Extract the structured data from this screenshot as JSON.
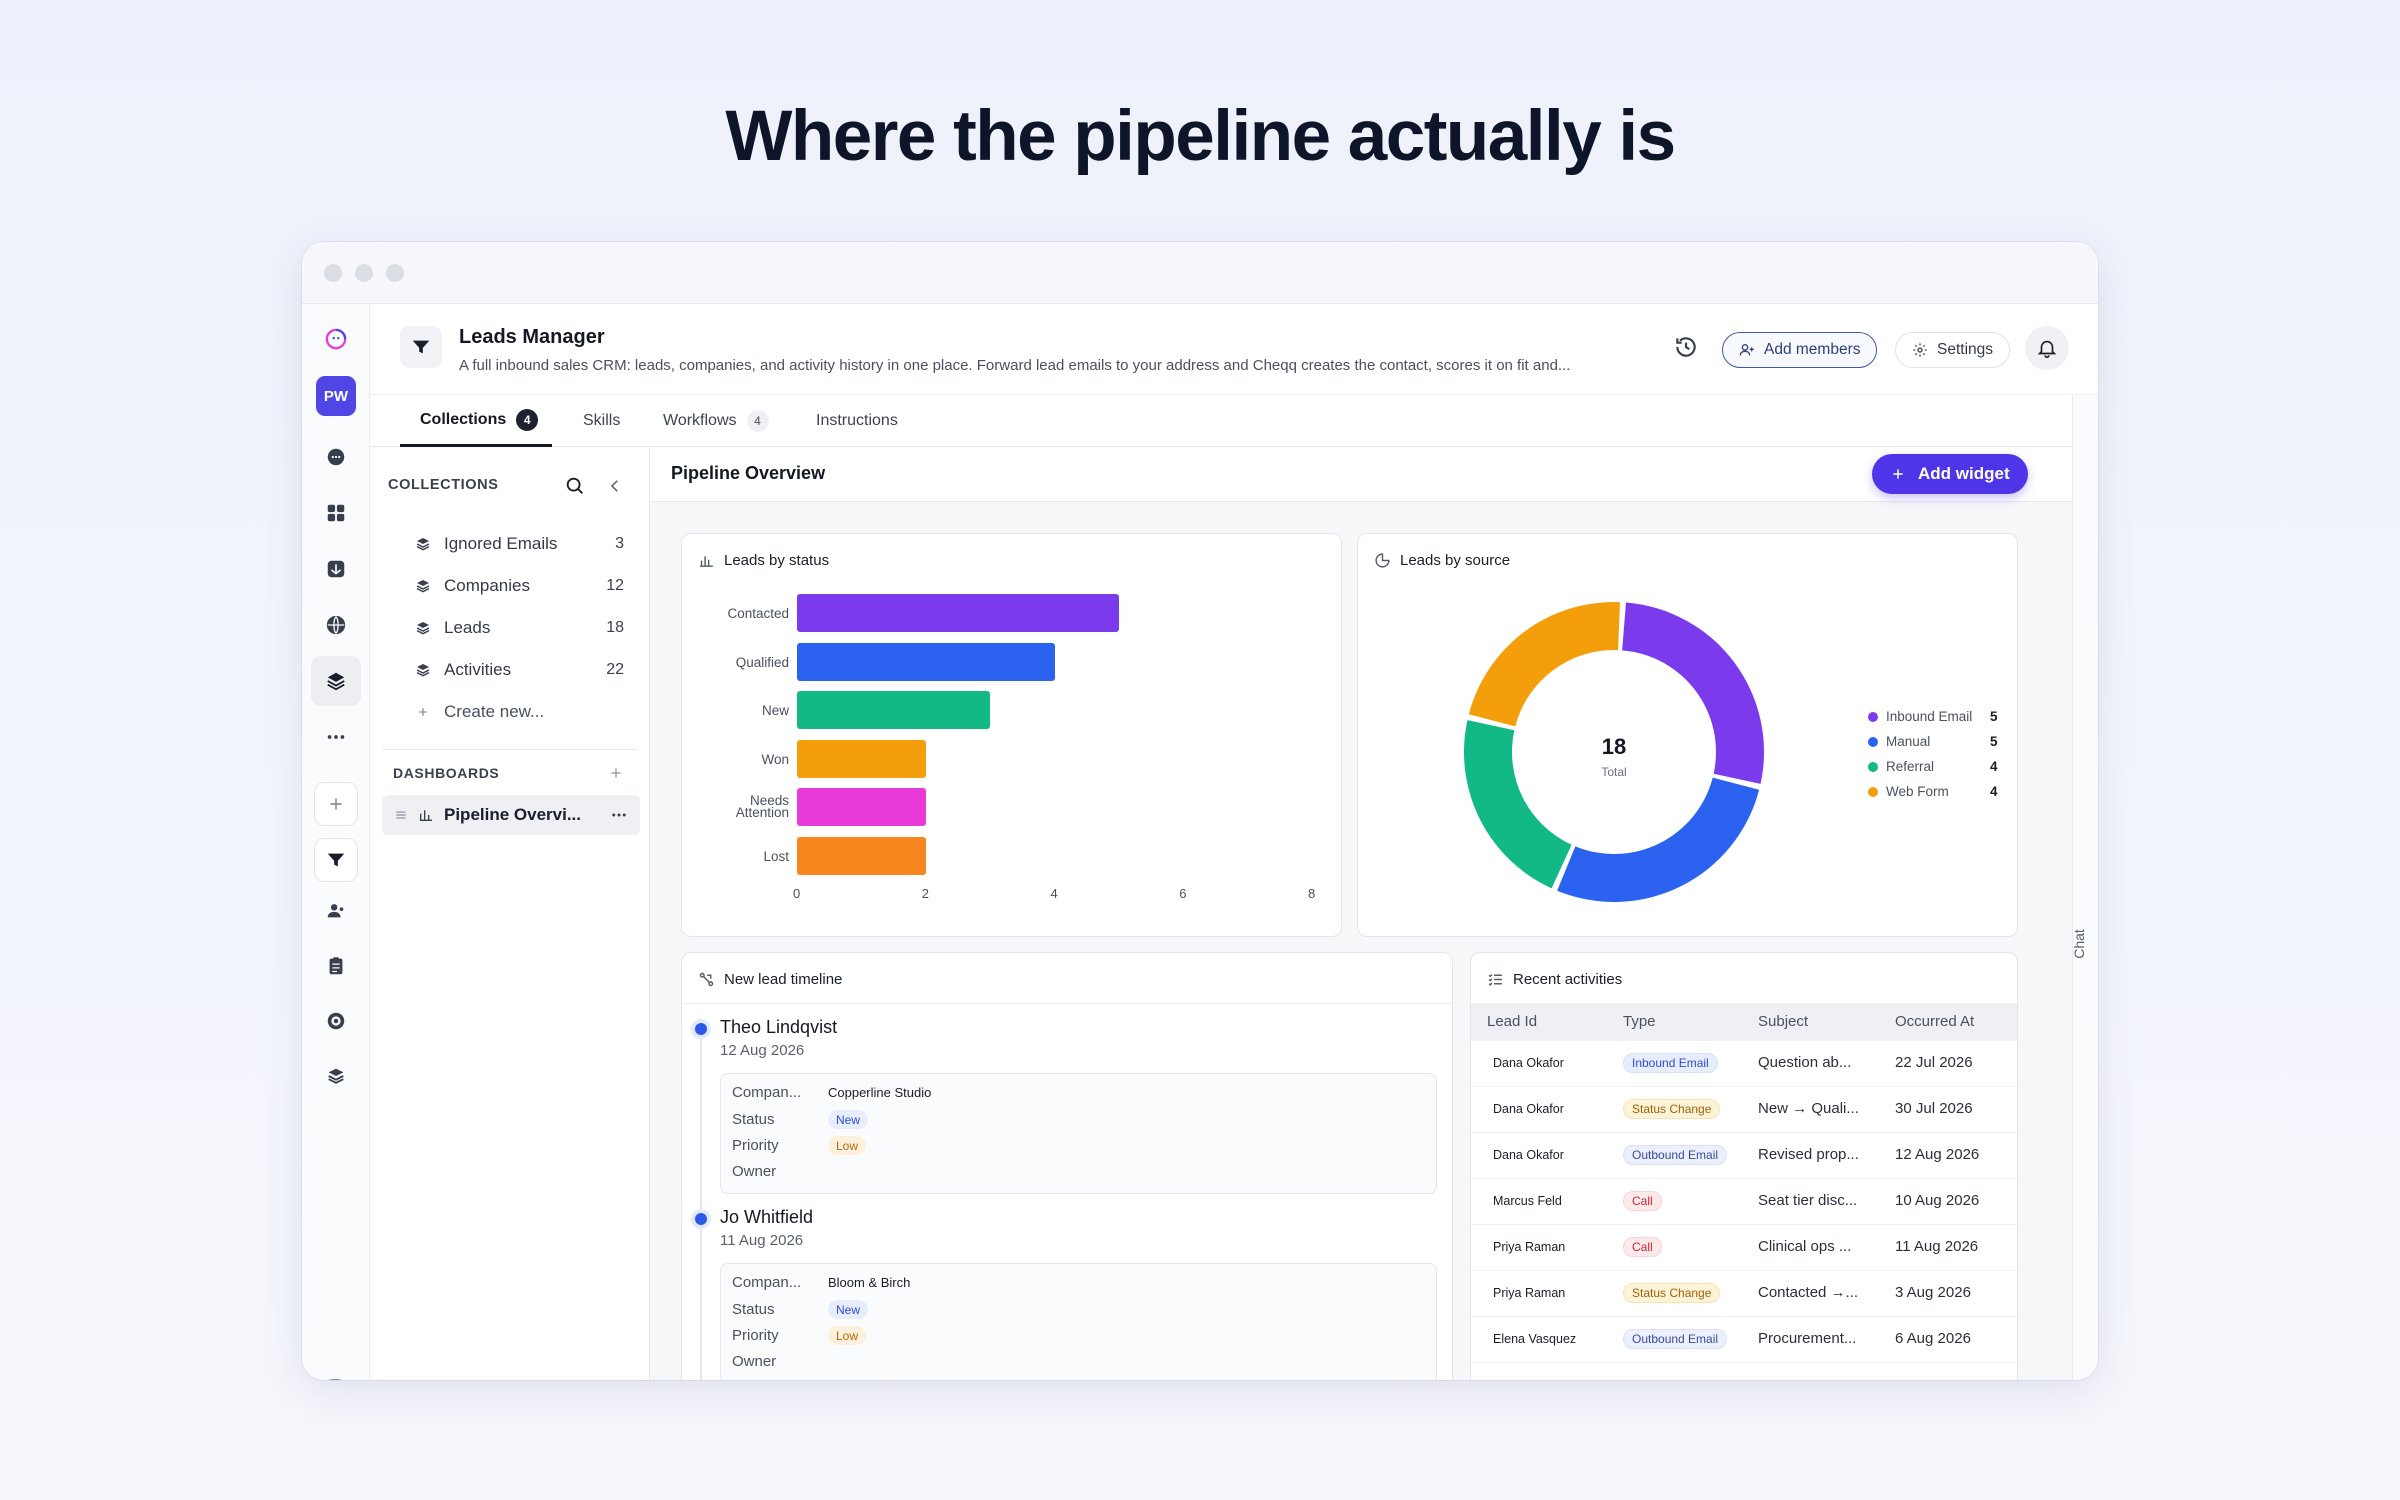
{
  "headline": "Where the pipeline actually is",
  "app": {
    "title": "Leads Manager",
    "description": "A full inbound sales CRM: leads, companies, and activity history in one place. Forward lead emails to your address and Cheqq creates the contact, scores it on fit and...",
    "add_members": "Add members",
    "settings": "Settings"
  },
  "rail": {
    "workspace_initials": "PW"
  },
  "tabs": [
    {
      "label": "Collections",
      "badge": "4"
    },
    {
      "label": "Skills",
      "badge": ""
    },
    {
      "label": "Workflows",
      "badge": "4"
    },
    {
      "label": "Instructions",
      "badge": ""
    }
  ],
  "collections": {
    "heading": "COLLECTIONS",
    "items": [
      {
        "label": "Ignored Emails",
        "count": "3"
      },
      {
        "label": "Companies",
        "count": "12"
      },
      {
        "label": "Leads",
        "count": "18"
      },
      {
        "label": "Activities",
        "count": "22"
      }
    ],
    "create_new": "Create new...",
    "dashboards_heading": "DASHBOARDS",
    "dashboard_item": "Pipeline Overvi..."
  },
  "content": {
    "title": "Pipeline Overview",
    "add_widget": "Add widget"
  },
  "chat_label": "Chat",
  "widgets": {
    "status_title": "Leads by status",
    "source_title": "Leads by source",
    "timeline_title": "New lead timeline",
    "activities_title": "Recent activities"
  },
  "chart_data": [
    {
      "type": "bar",
      "orientation": "horizontal",
      "title": "Leads by status",
      "categories": [
        "Contacted",
        "Qualified",
        "New",
        "Won",
        "Needs Attention",
        "Lost"
      ],
      "values": [
        5,
        4,
        3,
        2,
        2,
        2
      ],
      "colors": [
        "#7c3aed",
        "#2b63f0",
        "#12b886",
        "#f59e0b",
        "#e83ad6",
        "#f7861e"
      ],
      "xlim": [
        0,
        8
      ],
      "xticks": [
        "0",
        "2",
        "4",
        "6",
        "8"
      ]
    },
    {
      "type": "pie",
      "donut": true,
      "title": "Leads by source",
      "center_value": "18",
      "center_label": "Total",
      "categories": [
        "Inbound Email",
        "Manual",
        "Referral",
        "Web Form"
      ],
      "values": [
        5,
        5,
        4,
        4
      ],
      "colors": [
        "#7c3aed",
        "#2b63f0",
        "#12b886",
        "#f59e0b"
      ],
      "legend_position": "right"
    }
  ],
  "timeline": [
    {
      "name": "Theo Lindqvist",
      "date": "12 Aug 2026",
      "company_label": "Compan...",
      "company": "Copperline Studio",
      "status_label": "Status",
      "status": "New",
      "priority_label": "Priority",
      "priority": "Low",
      "owner_label": "Owner"
    },
    {
      "name": "Jo Whitfield",
      "date": "11 Aug 2026",
      "company_label": "Compan...",
      "company": "Bloom & Birch",
      "status_label": "Status",
      "status": "New",
      "priority_label": "Priority",
      "priority": "Low",
      "owner_label": "Owner"
    }
  ],
  "activities": {
    "headers": [
      "Lead Id",
      "Type",
      "Subject",
      "Occurred At"
    ],
    "rows": [
      {
        "lead": "Dana Okafor",
        "type": "Inbound Email",
        "subject": "Question ab...",
        "date": "22 Jul 2026"
      },
      {
        "lead": "Dana Okafor",
        "type": "Status Change",
        "subject": "New → Quali...",
        "date": "30 Jul 2026"
      },
      {
        "lead": "Dana Okafor",
        "type": "Outbound Email",
        "subject": "Revised prop...",
        "date": "12 Aug 2026"
      },
      {
        "lead": "Marcus Feld",
        "type": "Call",
        "subject": "Seat tier disc...",
        "date": "10 Aug 2026"
      },
      {
        "lead": "Priya Raman",
        "type": "Call",
        "subject": "Clinical ops ...",
        "date": "11 Aug 2026"
      },
      {
        "lead": "Priya Raman",
        "type": "Status Change",
        "subject": "Contacted →...",
        "date": "3 Aug 2026"
      },
      {
        "lead": "Elena Vasquez",
        "type": "Outbound Email",
        "subject": "Procurement...",
        "date": "6 Aug 2026"
      }
    ]
  }
}
